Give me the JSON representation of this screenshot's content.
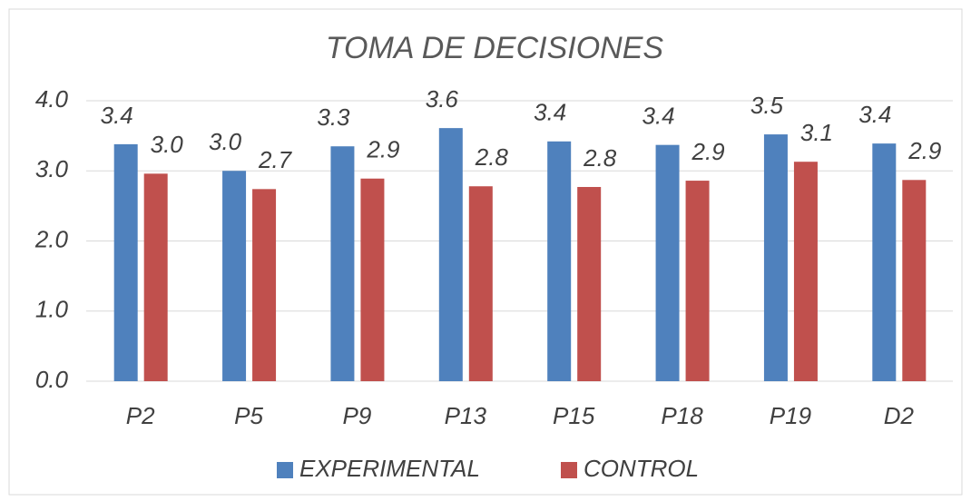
{
  "chart_data": {
    "type": "bar",
    "title": "TOMA DE DECISIONES",
    "categories": [
      "P2",
      "P5",
      "P9",
      "P13",
      "P15",
      "P18",
      "P19",
      "D2"
    ],
    "series": [
      {
        "name": "EXPERIMENTAL",
        "color": "#4f81bd",
        "values": [
          3.38,
          3.0,
          3.35,
          3.61,
          3.42,
          3.37,
          3.52,
          3.39
        ],
        "value_labels": [
          "3.4",
          "3.0",
          "3.3",
          "3.6",
          "3.4",
          "3.4",
          "3.5",
          "3.4"
        ]
      },
      {
        "name": "CONTROL",
        "color": "#c0504d",
        "values": [
          2.96,
          2.74,
          2.89,
          2.78,
          2.77,
          2.86,
          3.13,
          2.87
        ],
        "value_labels": [
          "3.0",
          "2.7",
          "2.9",
          "2.8",
          "2.8",
          "2.9",
          "3.1",
          "2.9"
        ]
      }
    ],
    "ylim": [
      0,
      4
    ],
    "yticks": [
      {
        "value": 0,
        "label": "0.0"
      },
      {
        "value": 1,
        "label": "1.0"
      },
      {
        "value": 2,
        "label": "2.0"
      },
      {
        "value": 3,
        "label": "3.0"
      },
      {
        "value": 4,
        "label": "4.0"
      }
    ],
    "grid": true,
    "legend": "bottom"
  }
}
